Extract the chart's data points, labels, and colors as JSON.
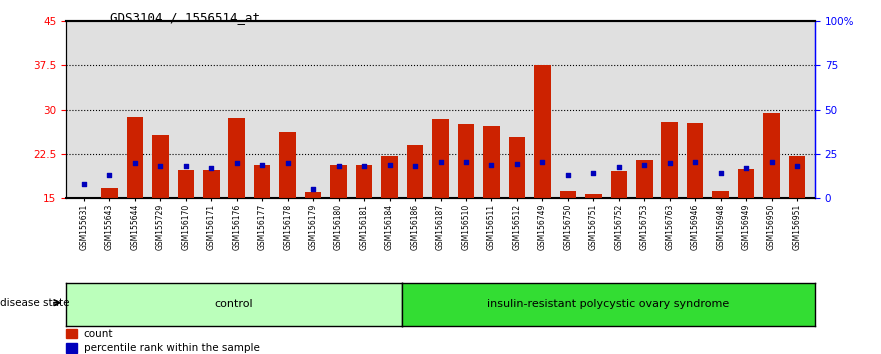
{
  "title": "GDS3104 / 1556514_at",
  "samples": [
    "GSM155631",
    "GSM155643",
    "GSM155644",
    "GSM155729",
    "GSM156170",
    "GSM156171",
    "GSM156176",
    "GSM156177",
    "GSM156178",
    "GSM156179",
    "GSM156180",
    "GSM156181",
    "GSM156184",
    "GSM156186",
    "GSM156187",
    "GSM156510",
    "GSM156511",
    "GSM156512",
    "GSM156749",
    "GSM156750",
    "GSM156751",
    "GSM156752",
    "GSM156753",
    "GSM156763",
    "GSM156946",
    "GSM156948",
    "GSM156949",
    "GSM156950",
    "GSM156951"
  ],
  "count_values": [
    15.1,
    16.8,
    28.7,
    25.8,
    19.8,
    19.8,
    28.6,
    20.7,
    26.2,
    16.1,
    20.7,
    20.7,
    22.2,
    24.1,
    28.5,
    27.5,
    27.2,
    25.3,
    37.5,
    16.2,
    15.8,
    19.7,
    21.5,
    28.0,
    27.7,
    16.2,
    19.9,
    29.5,
    22.2
  ],
  "percentile_values": [
    8.0,
    13.0,
    20.0,
    18.0,
    18.0,
    17.0,
    20.0,
    18.5,
    20.0,
    5.0,
    18.0,
    18.0,
    18.5,
    18.0,
    20.5,
    20.5,
    19.0,
    19.5,
    20.5,
    13.0,
    14.0,
    17.5,
    19.0,
    20.0,
    20.5,
    14.5,
    17.0,
    20.5,
    18.0
  ],
  "control_count": 13,
  "total_count": 29,
  "ylim_left": [
    15,
    45
  ],
  "ylim_right": [
    0,
    100
  ],
  "yticks_left": [
    15,
    22.5,
    30,
    37.5,
    45
  ],
  "ytick_labels_left": [
    "15",
    "22.5",
    "30",
    "37.5",
    "45"
  ],
  "yticks_right": [
    0,
    25,
    50,
    75,
    100
  ],
  "ytick_labels_right": [
    "0",
    "25",
    "50",
    "75",
    "100%"
  ],
  "bar_color": "#CC2200",
  "percentile_color": "#0000BB",
  "control_color": "#BBFFBB",
  "disease_color": "#33DD33",
  "bg_color": "#E0E0E0",
  "legend_count_label": "count",
  "legend_pct_label": "percentile rank within the sample",
  "control_label": "control",
  "disease_label": "insulin-resistant polycystic ovary syndrome",
  "disease_state_label": "disease state"
}
